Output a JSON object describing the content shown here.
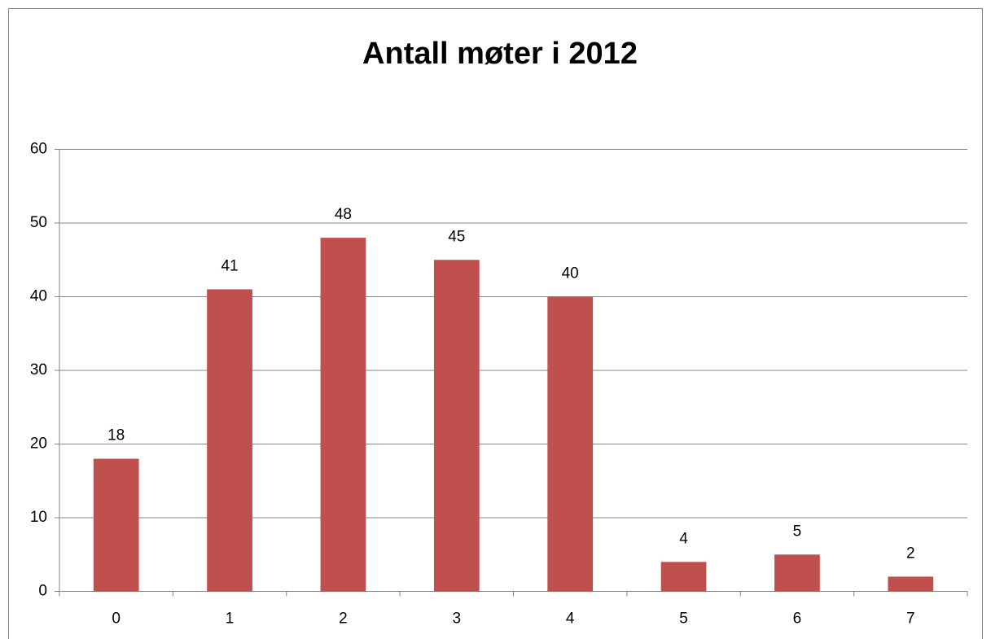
{
  "chart_data": {
    "type": "bar",
    "title": "Antall møter i 2012",
    "categories": [
      "0",
      "1",
      "2",
      "3",
      "4",
      "5",
      "6",
      "7"
    ],
    "values": [
      18,
      41,
      48,
      45,
      40,
      4,
      5,
      2
    ],
    "color": "#c0504d",
    "ylim": [
      0,
      60
    ],
    "yticks": [
      0,
      10,
      20,
      30,
      40,
      50,
      60
    ],
    "grid": true
  }
}
